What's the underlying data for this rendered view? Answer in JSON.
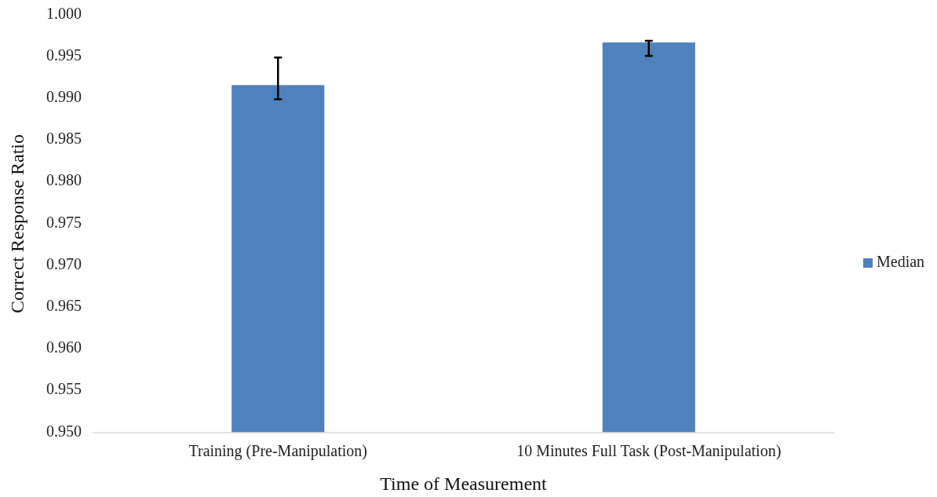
{
  "chart_data": {
    "type": "bar",
    "xlabel": "Time of Measurement",
    "ylabel": "Correct Response Ratio",
    "categories": [
      "Training (Pre-Manipulation)",
      "10 Minutes Full Task (Post-Manipulation)"
    ],
    "series": [
      {
        "name": "Median",
        "color": "#4f81bd",
        "values": [
          0.9916,
          0.9967
        ],
        "errors": [
          [
            0.9899,
            0.9949
          ],
          [
            0.9951,
            0.9969
          ]
        ]
      }
    ],
    "ylim": [
      0.95,
      1.0
    ],
    "yticks": [
      {
        "value": 0.95,
        "label": "0.950"
      },
      {
        "value": 0.955,
        "label": "0.955"
      },
      {
        "value": 0.96,
        "label": "0.960"
      },
      {
        "value": 0.965,
        "label": "0.965"
      },
      {
        "value": 0.97,
        "label": "0.970"
      },
      {
        "value": 0.975,
        "label": "0.975"
      },
      {
        "value": 0.98,
        "label": "0.980"
      },
      {
        "value": 0.985,
        "label": "0.985"
      },
      {
        "value": 0.99,
        "label": "0.990"
      },
      {
        "value": 0.995,
        "label": "0.995"
      },
      {
        "value": 1.0,
        "label": "1.000"
      }
    ],
    "grid": false,
    "legend": "right"
  }
}
